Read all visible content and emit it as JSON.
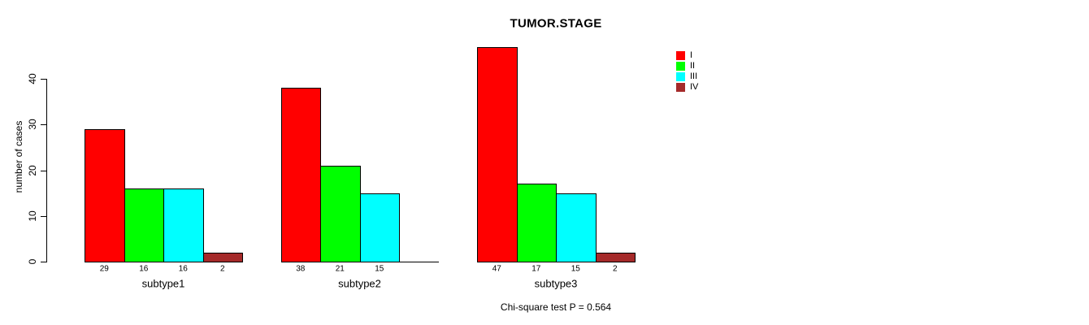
{
  "title": "TUMOR.STAGE",
  "ylabel": "number of cases",
  "footer": "Chi-square test P = 0.564",
  "chart_data": {
    "type": "bar",
    "title": "TUMOR.STAGE",
    "xlabel": "",
    "ylabel": "number of cases",
    "categories": [
      "subtype1",
      "subtype2",
      "subtype3"
    ],
    "series": [
      {
        "name": "I",
        "color": "#FF0000",
        "values": [
          29,
          38,
          47
        ]
      },
      {
        "name": "II",
        "color": "#00FF00",
        "values": [
          16,
          21,
          17
        ]
      },
      {
        "name": "III",
        "color": "#00FFFF",
        "values": [
          16,
          15,
          15
        ]
      },
      {
        "name": "IV",
        "color": "#A52A2A",
        "values": [
          2,
          0,
          2
        ]
      }
    ],
    "bar_value_labels": [
      [
        29,
        16,
        16,
        2
      ],
      [
        38,
        21,
        15,
        null
      ],
      [
        47,
        17,
        15,
        2
      ]
    ],
    "yticks": [
      0,
      10,
      20,
      30,
      40
    ],
    "ylim": [
      0,
      47
    ],
    "grid": false,
    "legend_position": "top-right",
    "annotation": "Chi-square test P = 0.564"
  }
}
